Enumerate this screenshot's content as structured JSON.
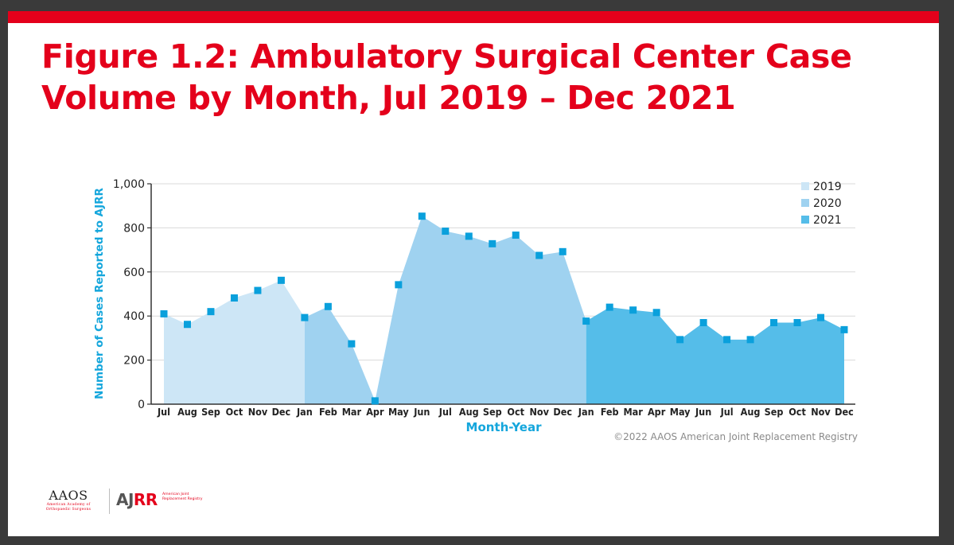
{
  "slide": {
    "title": "Figure 1.2: Ambulatory Surgical Center Case\nVolume by Month, Jul 2019 – Dec 2021",
    "copyright": "©2022 AAOS American Joint Replacement Registry",
    "logos": {
      "aaos": "AAOS",
      "aaos_sub": "American Academy of Orthopaedic Surgeons",
      "ajrr_aj": "AJ",
      "ajrr_rr": "RR",
      "ajrr_sub": "American Joint Replacement Registry"
    },
    "brand_red": "#e4001b"
  },
  "chart_data": {
    "type": "area",
    "xlabel": "Month-Year",
    "ylabel": "Number of Cases Reported to AJRR",
    "ylim": [
      0,
      1000
    ],
    "yticks": [
      0,
      200,
      400,
      600,
      800,
      1000
    ],
    "ytick_labels": [
      "0",
      "200",
      "400",
      "600",
      "800",
      "1,000"
    ],
    "grid": true,
    "legend_position": "top-right",
    "marker_color": "#0aa0dc",
    "axis_label_color": "#14a6dc",
    "series": [
      {
        "name": "2019",
        "color": "#cde6f6",
        "categories": [
          "Jul",
          "Aug",
          "Sep",
          "Oct",
          "Nov",
          "Dec"
        ],
        "values": [
          410,
          362,
          420,
          482,
          516,
          562
        ]
      },
      {
        "name": "2020",
        "color": "#9fd2f0",
        "categories": [
          "Jan",
          "Feb",
          "Mar",
          "Apr",
          "May",
          "Jun",
          "Jul",
          "Aug",
          "Sep",
          "Oct",
          "Nov",
          "Dec"
        ],
        "values": [
          393,
          443,
          274,
          15,
          542,
          853,
          785,
          762,
          728,
          767,
          675,
          692
        ]
      },
      {
        "name": "2021",
        "color": "#55bde9",
        "categories": [
          "Jan",
          "Feb",
          "Mar",
          "Apr",
          "May",
          "Jun",
          "Jul",
          "Aug",
          "Sep",
          "Oct",
          "Nov",
          "Dec"
        ],
        "values": [
          377,
          440,
          427,
          416,
          293,
          370,
          293,
          293,
          370,
          370,
          393,
          338
        ]
      }
    ]
  }
}
